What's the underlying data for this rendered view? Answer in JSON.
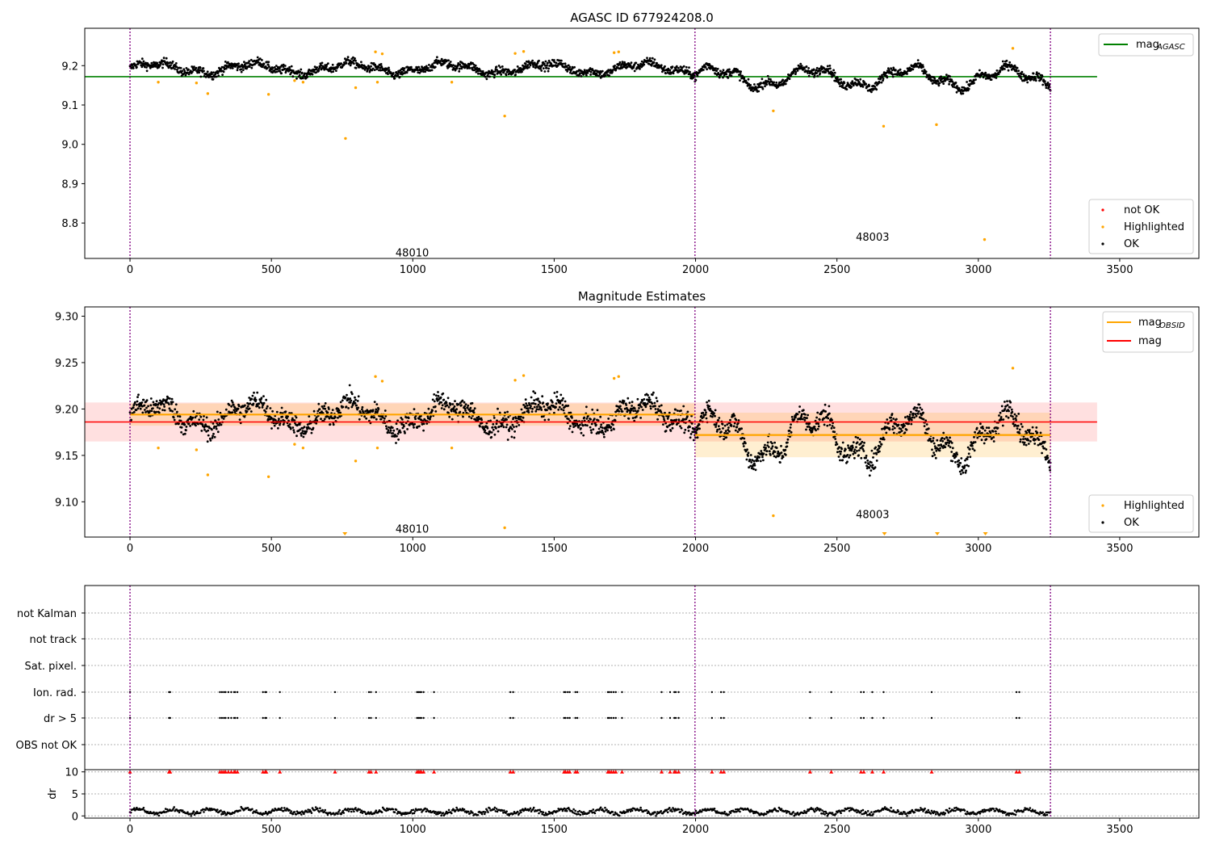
{
  "figure": {
    "panel1_title": "AGASC ID 677924208.0",
    "panel2_title": "Magnitude Estimates"
  },
  "chart_data": [
    {
      "type": "scatter",
      "title": "AGASC ID 677924208.0",
      "xlim": [
        -160,
        3780
      ],
      "ylim": [
        8.71,
        9.295
      ],
      "yticks": [
        "8.8",
        "8.9",
        "9.0",
        "9.1",
        "9.2"
      ],
      "xticks": [
        "0",
        "500",
        "1000",
        "1500",
        "2000",
        "2500",
        "3000",
        "3500"
      ],
      "obs_boundaries": [
        0,
        1998,
        3255
      ],
      "obsid_labels": [
        {
          "text": "48010",
          "x": 998,
          "y": 8.725
        },
        {
          "text": "48003",
          "x": 2626,
          "y": 8.765
        }
      ],
      "mag_agasc": {
        "value": 9.172,
        "x_range": [
          -160,
          3420
        ],
        "color": "#008000"
      },
      "segments": [
        {
          "x_range": [
            0,
            1998
          ],
          "mean": 9.193,
          "amplitude": 0.012,
          "scatter": 0.008
        },
        {
          "x_range": [
            1998,
            3255
          ],
          "mean": 9.17,
          "amplitude": 0.022,
          "scatter": 0.008
        }
      ],
      "highlighted": [
        {
          "x": 100,
          "y": 9.158
        },
        {
          "x": 235,
          "y": 9.156
        },
        {
          "x": 275,
          "y": 9.129
        },
        {
          "x": 490,
          "y": 9.127
        },
        {
          "x": 582,
          "y": 9.162
        },
        {
          "x": 612,
          "y": 9.158
        },
        {
          "x": 762,
          "y": 9.015
        },
        {
          "x": 798,
          "y": 9.144
        },
        {
          "x": 875,
          "y": 9.158
        },
        {
          "x": 868,
          "y": 9.235
        },
        {
          "x": 892,
          "y": 9.23
        },
        {
          "x": 1138,
          "y": 9.158
        },
        {
          "x": 1325,
          "y": 9.072
        },
        {
          "x": 1362,
          "y": 9.231
        },
        {
          "x": 1392,
          "y": 9.236
        },
        {
          "x": 1712,
          "y": 9.233
        },
        {
          "x": 1728,
          "y": 9.235
        },
        {
          "x": 2275,
          "y": 9.085
        },
        {
          "x": 2665,
          "y": 9.046
        },
        {
          "x": 2852,
          "y": 9.05
        },
        {
          "x": 3022,
          "y": 8.758
        },
        {
          "x": 3122,
          "y": 9.244
        }
      ],
      "legend_top": [
        {
          "label": "mag",
          "subscript": "AGASC",
          "color": "#008000"
        }
      ],
      "legend_bottom": [
        {
          "label": "not OK",
          "color": "#ff0000"
        },
        {
          "label": "Highlighted",
          "color": "#ffa500"
        },
        {
          "label": "OK",
          "color": "#000000"
        }
      ]
    },
    {
      "type": "scatter",
      "title": "Magnitude Estimates",
      "xlim": [
        -160,
        3780
      ],
      "ylim": [
        9.062,
        9.31
      ],
      "yticks": [
        "9.10",
        "9.15",
        "9.20",
        "9.25",
        "9.30"
      ],
      "xticks": [
        "0",
        "500",
        "1000",
        "1500",
        "2000",
        "2500",
        "3000",
        "3500"
      ],
      "obs_boundaries": [
        0,
        1998,
        3255
      ],
      "obsid_labels": [
        {
          "text": "48010",
          "x": 998,
          "y": 9.071
        },
        {
          "text": "48003",
          "x": 2626,
          "y": 9.087
        }
      ],
      "mag": {
        "value": 9.186,
        "band": [
          9.165,
          9.207
        ],
        "x_range": [
          -160,
          3420
        ],
        "color": "#ff0000"
      },
      "mag_obsid": [
        {
          "x_range": [
            0,
            1998
          ],
          "value": 9.194,
          "band": [
            9.182,
            9.206
          ],
          "color": "#ffa500"
        },
        {
          "x_range": [
            1998,
            3255
          ],
          "value": 9.172,
          "band": [
            9.148,
            9.196
          ],
          "color": "#ffa500"
        }
      ],
      "below_range_markers": [
        760,
        2668,
        2855,
        3025
      ],
      "legend_top": [
        {
          "label": "mag",
          "subscript": "OBSID",
          "color": "#ffa500"
        },
        {
          "label": "mag",
          "subscript": "",
          "color": "#ff0000"
        }
      ],
      "legend_bottom": [
        {
          "label": "Highlighted",
          "color": "#ffa500"
        },
        {
          "label": "OK",
          "color": "#000000"
        }
      ]
    },
    {
      "type": "scatter",
      "xlim": [
        -160,
        3780
      ],
      "flag_rows": [
        "not Kalman",
        "not track",
        "Sat. pixel.",
        "Ion. rad.",
        "dr > 5",
        "OBS not OK"
      ],
      "flag_events": [
        0,
        138,
        142,
        318,
        325,
        332,
        338,
        348,
        358,
        368,
        372,
        380,
        470,
        478,
        482,
        530,
        725,
        845,
        852,
        870,
        1015,
        1020,
        1025,
        1030,
        1038,
        1075,
        1345,
        1355,
        1535,
        1540,
        1548,
        1555,
        1575,
        1582,
        1690,
        1695,
        1702,
        1710,
        1718,
        1740,
        1880,
        1910,
        1925,
        1930,
        1940,
        2058,
        2090,
        2100,
        2405,
        2480,
        2585,
        2595,
        2625,
        2665,
        2835,
        3135,
        3145
      ],
      "dr_yticks": [
        "0",
        "5",
        "10"
      ],
      "dr_ylabel": "dr",
      "dr_ylim": [
        -0.5,
        10.5
      ],
      "xticks": [
        "0",
        "500",
        "1000",
        "1500",
        "2000",
        "2500",
        "3000",
        "3500"
      ],
      "obs_boundaries": [
        0,
        1998,
        3255
      ]
    }
  ]
}
